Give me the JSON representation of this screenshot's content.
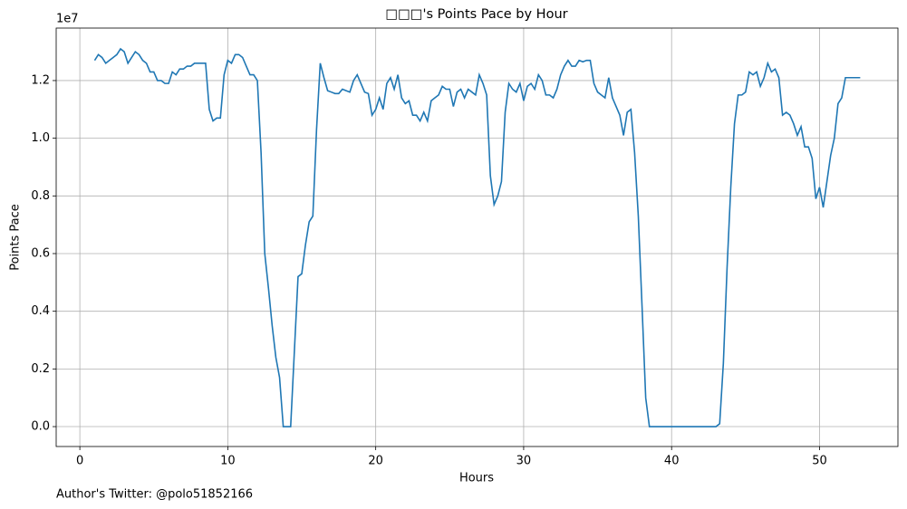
{
  "chart_data": {
    "type": "line",
    "title": "□□□'s Points Pace by Hour",
    "xlabel": "Hours",
    "ylabel": "Points Pace",
    "y_offset_label": "1e7",
    "footer": "Author's Twitter: @polo51852166",
    "grid": true,
    "xlim": [
      -1.6,
      55.3
    ],
    "xticks": [
      0,
      10,
      20,
      30,
      40,
      50
    ],
    "ylim": [
      -0.069,
      1.382
    ],
    "yticks": [
      {
        "value": 0,
        "label": "0.0"
      },
      0.2,
      0.4,
      0.6,
      0.8,
      {
        "value": 1,
        "label": "1.0"
      },
      1.2
    ],
    "x": [
      1,
      1.25,
      1.5,
      1.75,
      2,
      2.25,
      2.5,
      2.75,
      3,
      3.25,
      3.5,
      3.75,
      4,
      4.25,
      4.5,
      4.75,
      5,
      5.25,
      5.5,
      5.75,
      6,
      6.25,
      6.5,
      6.75,
      7,
      7.25,
      7.5,
      7.75,
      8,
      8.25,
      8.5,
      8.75,
      9,
      9.25,
      9.5,
      9.75,
      10,
      10.25,
      10.5,
      10.75,
      11,
      11.25,
      11.5,
      11.75,
      12,
      12.25,
      12.5,
      12.75,
      13,
      13.25,
      13.5,
      13.75,
      14,
      14.25,
      14.5,
      14.75,
      15,
      15.25,
      15.5,
      15.75,
      16,
      16.25,
      16.5,
      16.75,
      17,
      17.25,
      17.5,
      17.75,
      18,
      18.25,
      18.5,
      18.75,
      19,
      19.25,
      19.5,
      19.75,
      20,
      20.25,
      20.5,
      20.75,
      21,
      21.25,
      21.5,
      21.75,
      22,
      22.25,
      22.5,
      22.75,
      23,
      23.25,
      23.5,
      23.75,
      24,
      24.25,
      24.5,
      24.75,
      25,
      25.25,
      25.5,
      25.75,
      26,
      26.25,
      26.5,
      26.75,
      27,
      27.25,
      27.5,
      27.75,
      28,
      28.25,
      28.5,
      28.75,
      29,
      29.25,
      29.5,
      29.75,
      30,
      30.25,
      30.5,
      30.75,
      31,
      31.25,
      31.5,
      31.75,
      32,
      32.25,
      32.5,
      32.75,
      33,
      33.25,
      33.5,
      33.75,
      34,
      34.25,
      34.5,
      34.75,
      35,
      35.25,
      35.5,
      35.75,
      36,
      36.25,
      36.5,
      36.75,
      37,
      37.25,
      37.5,
      37.75,
      38,
      38.25,
      38.5,
      38.75,
      39,
      39.25,
      39.5,
      39.75,
      40,
      40.25,
      40.5,
      40.75,
      41,
      41.25,
      41.5,
      41.75,
      42,
      42.25,
      42.5,
      42.75,
      43,
      43.25,
      43.5,
      43.75,
      44,
      44.25,
      44.5,
      44.75,
      45,
      45.25,
      45.5,
      45.75,
      46,
      46.25,
      46.5,
      46.75,
      47,
      47.25,
      47.5,
      47.75,
      48,
      48.25,
      48.5,
      48.75,
      49,
      49.25,
      49.5,
      49.75,
      50,
      50.25,
      50.5,
      50.75,
      51,
      51.25,
      51.5,
      51.75,
      52,
      52.25,
      52.5,
      52.75
    ],
    "series": [
      {
        "name": "Points Pace",
        "color": "#1f77b4",
        "values": [
          1.27,
          1.29,
          1.28,
          1.26,
          1.27,
          1.28,
          1.29,
          1.31,
          1.3,
          1.26,
          1.28,
          1.3,
          1.29,
          1.27,
          1.26,
          1.23,
          1.23,
          1.2,
          1.2,
          1.19,
          1.19,
          1.23,
          1.22,
          1.24,
          1.24,
          1.25,
          1.25,
          1.26,
          1.26,
          1.26,
          1.26,
          1.1,
          1.06,
          1.07,
          1.07,
          1.22,
          1.27,
          1.26,
          1.29,
          1.29,
          1.28,
          1.25,
          1.22,
          1.22,
          1.2,
          0.95,
          0.6,
          0.48,
          0.35,
          0.24,
          0.17,
          0,
          0,
          0,
          0.26,
          0.52,
          0.53,
          0.63,
          0.71,
          0.73,
          1.03,
          1.26,
          1.21,
          1.165,
          1.16,
          1.155,
          1.155,
          1.17,
          1.165,
          1.16,
          1.2,
          1.22,
          1.19,
          1.16,
          1.155,
          1.08,
          1.1,
          1.14,
          1.1,
          1.19,
          1.21,
          1.17,
          1.22,
          1.14,
          1.12,
          1.13,
          1.08,
          1.08,
          1.06,
          1.09,
          1.06,
          1.13,
          1.14,
          1.15,
          1.18,
          1.17,
          1.17,
          1.11,
          1.16,
          1.17,
          1.14,
          1.17,
          1.16,
          1.15,
          1.22,
          1.19,
          1.15,
          0.87,
          0.77,
          0.8,
          0.85,
          1.09,
          1.19,
          1.17,
          1.16,
          1.19,
          1.13,
          1.18,
          1.19,
          1.17,
          1.22,
          1.2,
          1.15,
          1.15,
          1.14,
          1.17,
          1.22,
          1.25,
          1.27,
          1.25,
          1.25,
          1.27,
          1.265,
          1.27,
          1.27,
          1.19,
          1.16,
          1.15,
          1.14,
          1.21,
          1.14,
          1.11,
          1.08,
          1.01,
          1.09,
          1.1,
          0.95,
          0.73,
          0.42,
          0.1,
          0,
          0,
          0,
          0,
          0,
          0,
          0,
          0,
          0,
          0,
          0,
          0,
          0,
          0,
          0,
          0,
          0,
          0,
          0,
          0.01,
          0.22,
          0.55,
          0.83,
          1.05,
          1.15,
          1.15,
          1.16,
          1.23,
          1.22,
          1.23,
          1.18,
          1.21,
          1.26,
          1.23,
          1.24,
          1.21,
          1.08,
          1.09,
          1.08,
          1.05,
          1.01,
          1.04,
          0.97,
          0.97,
          0.93,
          0.79,
          0.83,
          0.76,
          0.85,
          0.94,
          1.0,
          1.12,
          1.14,
          1.21,
          1.21,
          1.21,
          1.21,
          1.21
        ]
      }
    ]
  }
}
